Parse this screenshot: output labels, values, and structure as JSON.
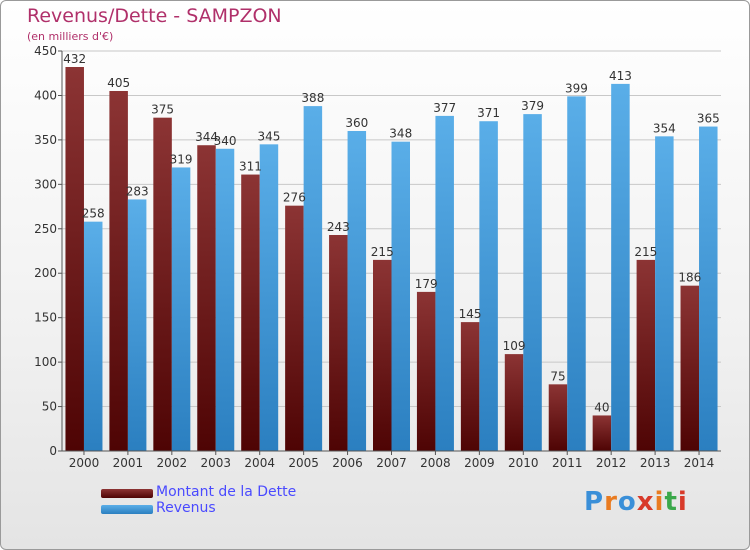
{
  "header": {
    "title": "Revenus/Dette - SAMPZON",
    "subtitle": "(en milliers d'€)"
  },
  "brand": {
    "letters": [
      "P",
      "r",
      "o",
      "x",
      "i",
      "t",
      "i"
    ],
    "colors": [
      "#3a8fd8",
      "#e97b20",
      "#3a8fd8",
      "#d83a2a",
      "#e97b20",
      "#3aa84a",
      "#d83a2a"
    ]
  },
  "chart_data": {
    "type": "bar",
    "title": "Revenus/Dette - SAMPZON",
    "subtitle": "(en milliers d'€)",
    "categories": [
      "2000",
      "2001",
      "2002",
      "2003",
      "2004",
      "2005",
      "2006",
      "2007",
      "2008",
      "2009",
      "2010",
      "2011",
      "2012",
      "2013",
      "2014"
    ],
    "series": [
      {
        "name": "Montant de la Dette",
        "color": "#7a1c1c",
        "values": [
          432,
          405,
          375,
          344,
          311,
          276,
          243,
          215,
          179,
          145,
          109,
          75,
          40,
          215,
          186
        ]
      },
      {
        "name": "Revenus",
        "color": "#3b9be0",
        "values": [
          258,
          283,
          319,
          340,
          345,
          388,
          360,
          348,
          377,
          371,
          379,
          399,
          413,
          354,
          365
        ]
      }
    ],
    "ylim": [
      0,
      450
    ],
    "yticks": [
      0,
      50,
      100,
      150,
      200,
      250,
      300,
      350,
      400,
      450
    ],
    "grid": true,
    "legend": "bottom-left"
  }
}
